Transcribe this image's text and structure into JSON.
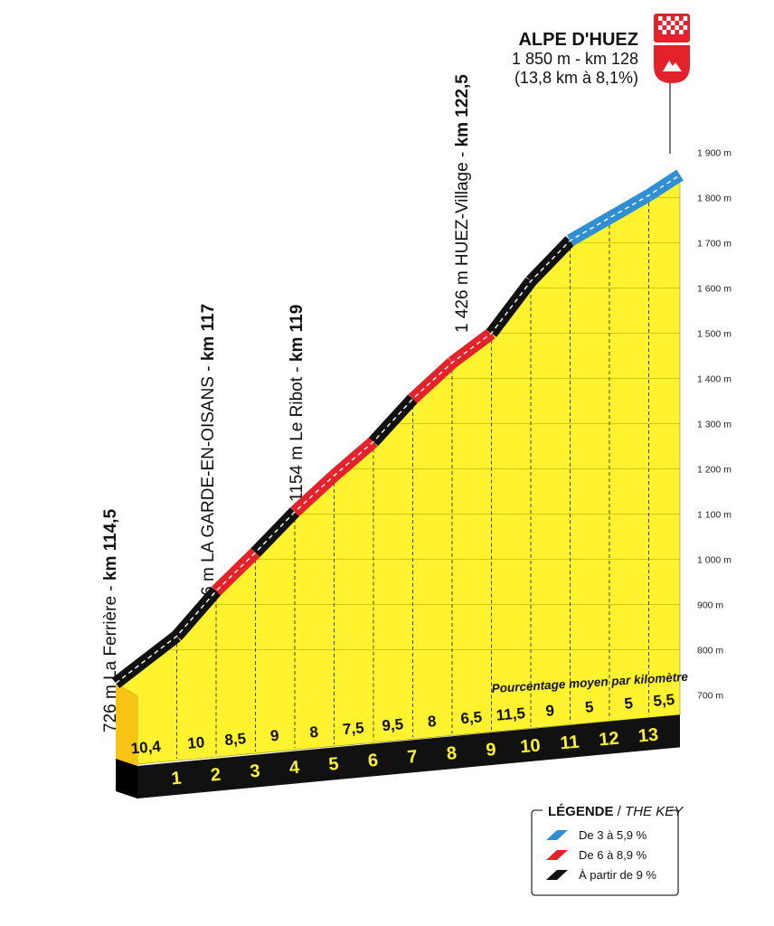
{
  "summit": {
    "name": "ALPE D'HUEZ",
    "line1": "1 850 m - km 128",
    "line2": "(13,8 km à 8,1%)"
  },
  "waypoints": [
    {
      "alt": "726 m La Ferrière - ",
      "km": "km 114,5"
    },
    {
      "alt": "906 m  LA GARDE-EN-OISANS - ",
      "km": "km 117"
    },
    {
      "alt": "1154 m Le Ribot - ",
      "km": "km 119"
    },
    {
      "alt": "1 426 m HUEZ-Village - ",
      "km": "km 122,5"
    }
  ],
  "avg_label": "Pourcentage moyen par kilomètre",
  "legend": {
    "title": "LÉGENDE",
    "subtitle": "THE KEY",
    "items": [
      {
        "label": "De 3 à 5,9 %",
        "color": "#2f8fd2"
      },
      {
        "label": "De 6 à 8,9 %",
        "color": "#e3222c"
      },
      {
        "label": "À partir de 9 %",
        "color": "#111111"
      }
    ]
  },
  "colors": {
    "profile_fill": "#fff22e",
    "profile_side": "#f7c315",
    "base": "#111111",
    "flag": "#e3222c"
  },
  "chart_data": {
    "type": "area",
    "title": "ALPE D'HUEZ",
    "xlabel": "",
    "ylabel": "",
    "y_unit": "m",
    "ylim": [
      640,
      1920
    ],
    "y_ticks": [
      700,
      800,
      900,
      1000,
      1100,
      1200,
      1300,
      1400,
      1500,
      1600,
      1700,
      1800,
      1900
    ],
    "y_tick_labels": [
      "700 m",
      "800 m",
      "900 m",
      "1 000 m",
      "1 100 m",
      "1 200 m",
      "1 300 m",
      "1 400 m",
      "1 500 m",
      "1 600 m",
      "1 700 m",
      "1 800 m",
      "1 900 m"
    ],
    "km_markers": [
      "1",
      "2",
      "3",
      "4",
      "5",
      "6",
      "7",
      "8",
      "9",
      "10",
      "11",
      "12",
      "13"
    ],
    "segments": [
      {
        "km": 1,
        "gradient": "10,4",
        "gradient_value": 10.4,
        "start_alt": 726,
        "end_alt": 830
      },
      {
        "km": 2,
        "gradient": "10",
        "gradient_value": 10.0,
        "start_alt": 830,
        "end_alt": 930
      },
      {
        "km": 3,
        "gradient": "8,5",
        "gradient_value": 8.5,
        "start_alt": 930,
        "end_alt": 1015
      },
      {
        "km": 4,
        "gradient": "9",
        "gradient_value": 9.0,
        "start_alt": 1015,
        "end_alt": 1105
      },
      {
        "km": 5,
        "gradient": "8",
        "gradient_value": 8.0,
        "start_alt": 1105,
        "end_alt": 1185
      },
      {
        "km": 6,
        "gradient": "7,5",
        "gradient_value": 7.5,
        "start_alt": 1185,
        "end_alt": 1260
      },
      {
        "km": 7,
        "gradient": "9,5",
        "gradient_value": 9.5,
        "start_alt": 1260,
        "end_alt": 1355
      },
      {
        "km": 8,
        "gradient": "8",
        "gradient_value": 8.0,
        "start_alt": 1355,
        "end_alt": 1435
      },
      {
        "km": 9,
        "gradient": "6,5",
        "gradient_value": 6.5,
        "start_alt": 1435,
        "end_alt": 1500
      },
      {
        "km": 10,
        "gradient": "11,5",
        "gradient_value": 11.5,
        "start_alt": 1500,
        "end_alt": 1615
      },
      {
        "km": 11,
        "gradient": "9",
        "gradient_value": 9.0,
        "start_alt": 1615,
        "end_alt": 1705
      },
      {
        "km": 12,
        "gradient": "5",
        "gradient_value": 5.0,
        "start_alt": 1705,
        "end_alt": 1755
      },
      {
        "km": 13,
        "gradient": "5",
        "gradient_value": 5.0,
        "start_alt": 1755,
        "end_alt": 1805
      },
      {
        "km": 13.8,
        "gradient": "5,5",
        "gradient_value": 5.5,
        "start_alt": 1805,
        "end_alt": 1850
      }
    ]
  }
}
